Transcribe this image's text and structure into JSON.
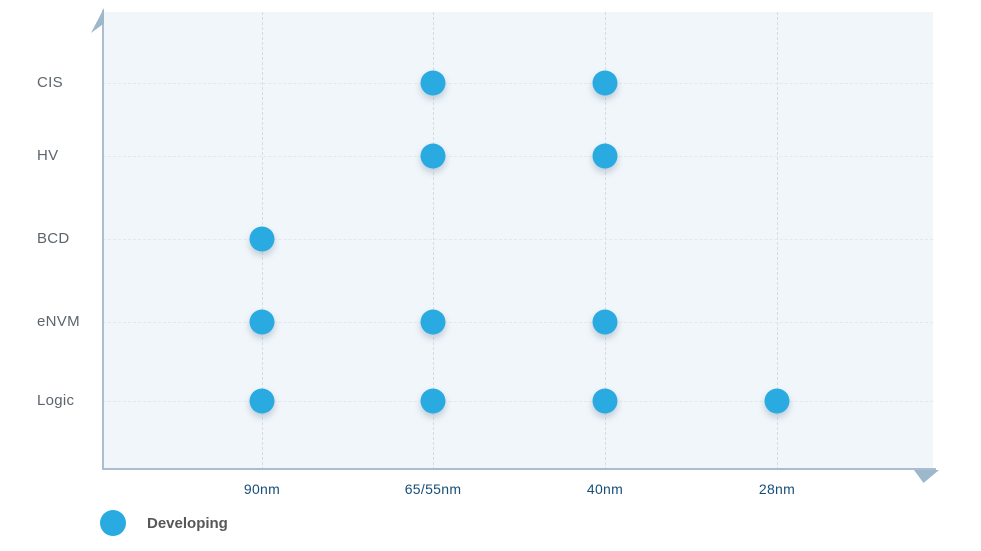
{
  "chart_data": {
    "type": "scatter",
    "title": "",
    "x_categories": [
      "90nm",
      "65/55nm",
      "40nm",
      "28nm"
    ],
    "y_categories": [
      "CIS",
      "HV",
      "BCD",
      "eNVM",
      "Logic"
    ],
    "grid": "dashed",
    "legend_position": "bottom-left",
    "series": [
      {
        "name": "Developing",
        "color": "#29ABE2",
        "points": [
          {
            "x": "65/55nm",
            "y": "CIS"
          },
          {
            "x": "40nm",
            "y": "CIS"
          },
          {
            "x": "65/55nm",
            "y": "HV"
          },
          {
            "x": "40nm",
            "y": "HV"
          },
          {
            "x": "90nm",
            "y": "BCD"
          },
          {
            "x": "90nm",
            "y": "eNVM"
          },
          {
            "x": "65/55nm",
            "y": "eNVM"
          },
          {
            "x": "40nm",
            "y": "eNVM"
          },
          {
            "x": "90nm",
            "y": "Logic"
          },
          {
            "x": "65/55nm",
            "y": "Logic"
          },
          {
            "x": "40nm",
            "y": "Logic"
          },
          {
            "x": "28nm",
            "y": "Logic"
          }
        ]
      }
    ]
  },
  "legend": {
    "items": [
      {
        "label": "Developing",
        "color": "#29ABE2"
      }
    ]
  },
  "colors": {
    "dot": "#29ABE2",
    "axis": "#a9bed1",
    "plot_background": "#f1f6fa",
    "x_label_text": "#174e78",
    "y_label_text": "#5c646c",
    "legend_text": "#575757"
  }
}
